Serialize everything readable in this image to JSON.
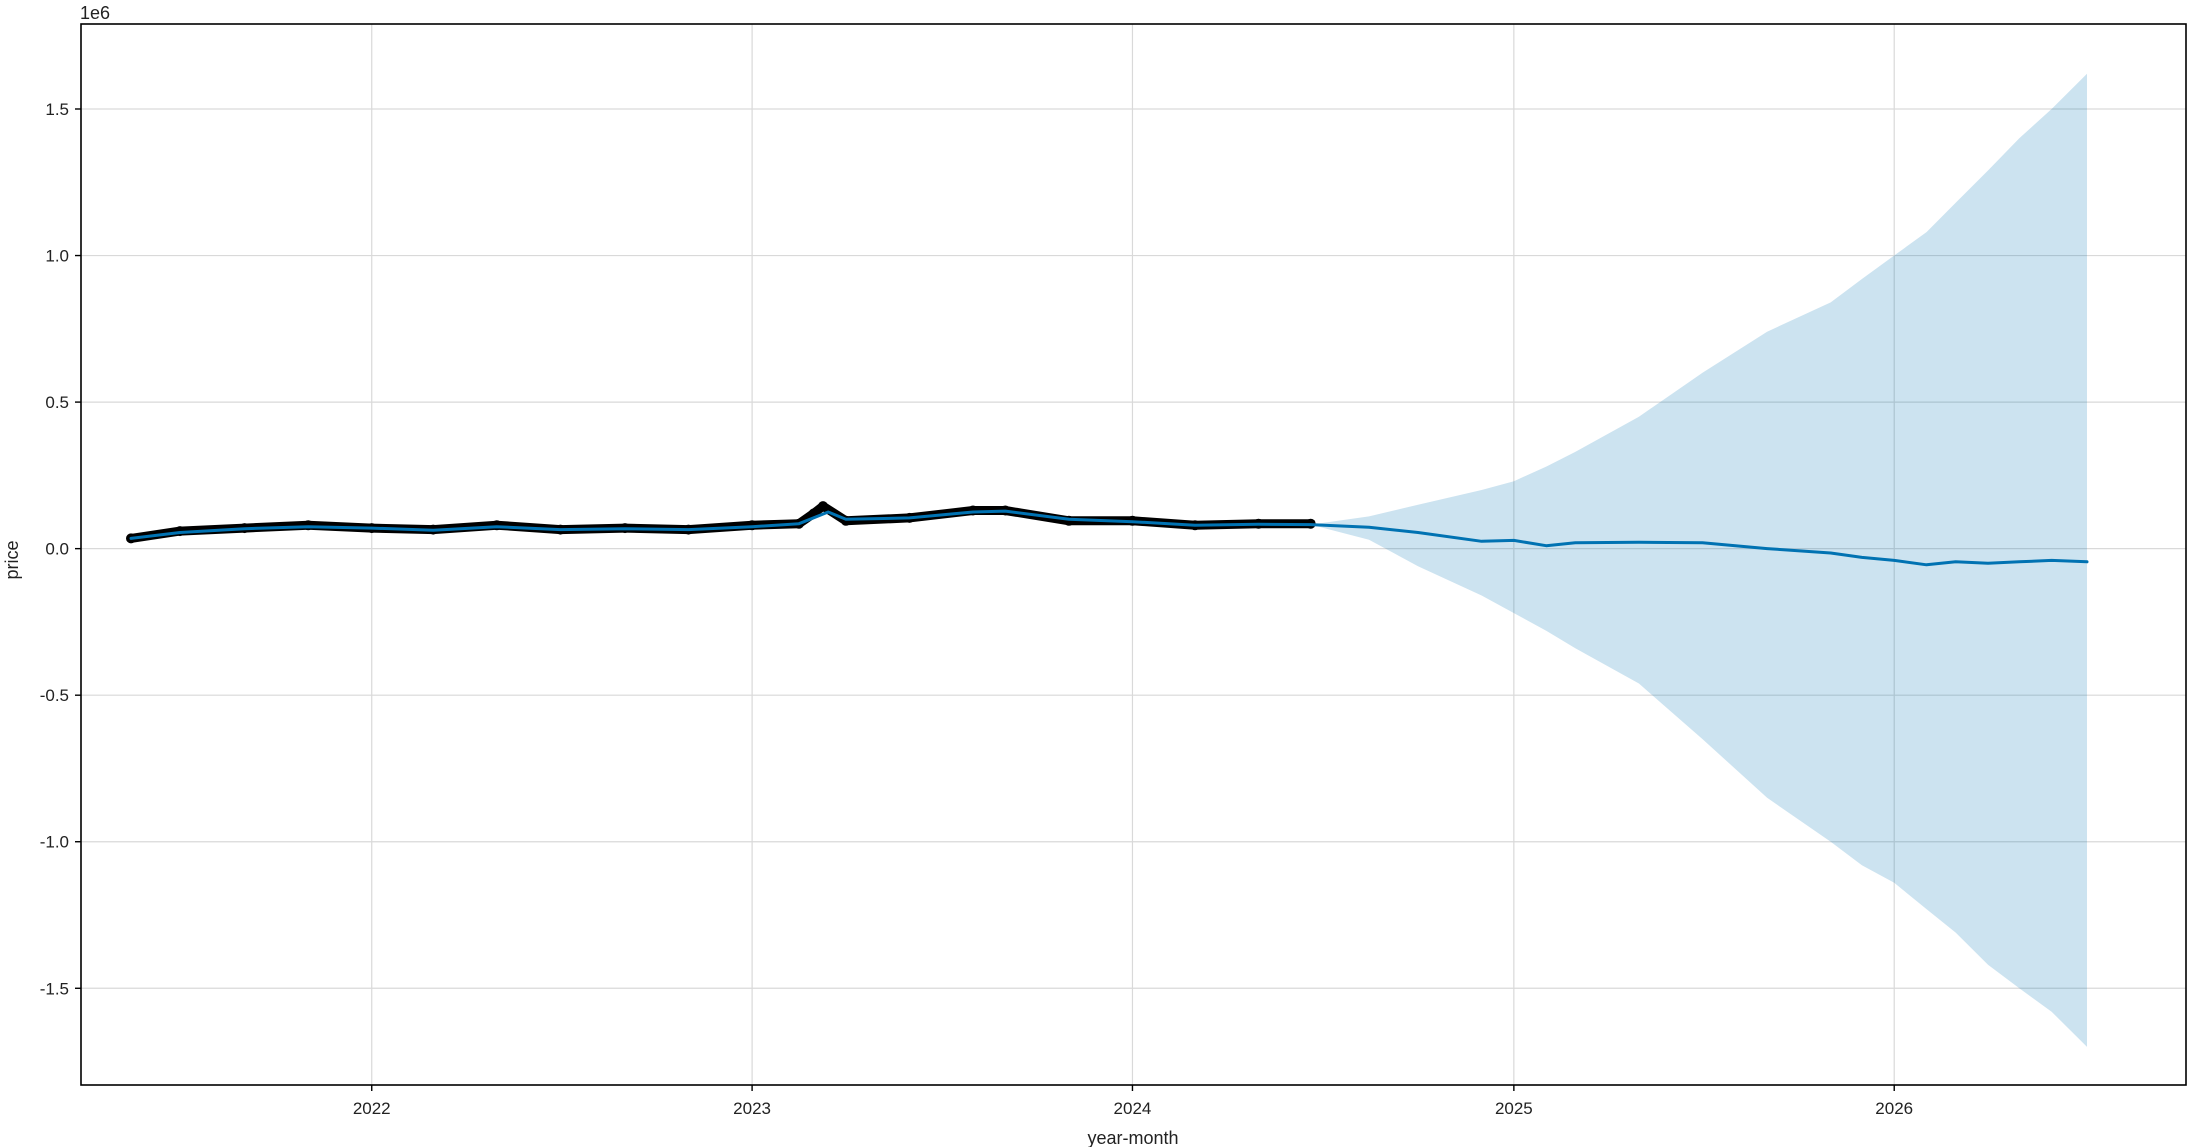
{
  "chart_data": {
    "type": "line",
    "title": "",
    "xlabel": "year-month",
    "ylabel": "price",
    "y_offset_label": "1e6",
    "grid": true,
    "x_ticks": [
      "2022",
      "2023",
      "2024",
      "2025",
      "2026"
    ],
    "y_ticks": [
      "1.5",
      "1.0",
      "0.5",
      "0.0",
      "-0.5",
      "-1.0",
      "-1.5"
    ],
    "xlim": [
      "2021-03-28",
      "2026-10-08"
    ],
    "ylim": [
      -1830000,
      1790000
    ],
    "colors": {
      "forecast_line": "#0072B2",
      "uncertainty_band": "#0072B2",
      "observed_points": "#000000",
      "grid": "#d9d9d9"
    },
    "observed": {
      "x": [
        "2021-05-15",
        "2021-07-01",
        "2021-09-01",
        "2021-11-01",
        "2022-01-01",
        "2022-03-01",
        "2022-05-01",
        "2022-07-01",
        "2022-09-01",
        "2022-11-01",
        "2023-01-01",
        "2023-02-15",
        "2023-03-01",
        "2023-03-10",
        "2023-04-01",
        "2023-06-01",
        "2023-08-01",
        "2023-09-01",
        "2023-11-01",
        "2024-01-01",
        "2024-03-01",
        "2024-05-01",
        "2024-06-20"
      ],
      "y": [
        35000,
        60000,
        70000,
        80000,
        70000,
        65000,
        80000,
        65000,
        70000,
        65000,
        80000,
        85000,
        120000,
        145000,
        95000,
        105000,
        130000,
        130000,
        95000,
        95000,
        80000,
        85000,
        85000
      ]
    },
    "series": [
      {
        "name": "",
        "x": [
          "2021-05-15",
          "2021-07-01",
          "2021-09-01",
          "2021-11-01",
          "2022-01-01",
          "2022-03-01",
          "2022-05-01",
          "2022-07-01",
          "2022-09-01",
          "2022-11-01",
          "2023-01-01",
          "2023-02-15",
          "2023-03-15",
          "2023-04-01",
          "2023-06-01",
          "2023-08-01",
          "2023-09-01",
          "2023-11-01",
          "2024-01-01",
          "2024-03-01",
          "2024-05-01",
          "2024-06-20",
          "2024-08-15",
          "2024-10-01",
          "2024-12-01",
          "2025-01-01",
          "2025-02-01",
          "2025-03-01",
          "2025-05-01",
          "2025-07-01",
          "2025-09-01",
          "2025-11-01",
          "2025-12-01",
          "2026-01-01",
          "2026-02-01",
          "2026-03-01",
          "2026-04-01",
          "2026-05-01",
          "2026-06-01",
          "2026-07-05"
        ],
        "y": [
          35000,
          55000,
          68000,
          75000,
          70000,
          63000,
          75000,
          65000,
          68000,
          65000,
          75000,
          85000,
          125000,
          100000,
          105000,
          125000,
          128000,
          100000,
          92000,
          80000,
          83000,
          82000,
          73000,
          55000,
          25000,
          28000,
          10000,
          20000,
          22000,
          20000,
          0,
          -15000,
          -30000,
          -40000,
          -55000,
          -45000,
          -50000,
          -45000,
          -40000,
          -45000
        ],
        "yhat_lower": [
          35000,
          55000,
          68000,
          75000,
          70000,
          63000,
          75000,
          65000,
          68000,
          65000,
          75000,
          85000,
          125000,
          100000,
          105000,
          125000,
          128000,
          100000,
          92000,
          80000,
          83000,
          82000,
          30000,
          -60000,
          -160000,
          -220000,
          -280000,
          -340000,
          -460000,
          -650000,
          -850000,
          -1000000,
          -1080000,
          -1140000,
          -1230000,
          -1310000,
          -1420000,
          -1500000,
          -1580000,
          -1700000
        ],
        "yhat_upper": [
          35000,
          55000,
          68000,
          75000,
          70000,
          63000,
          75000,
          65000,
          68000,
          65000,
          75000,
          85000,
          125000,
          100000,
          105000,
          125000,
          128000,
          100000,
          92000,
          80000,
          83000,
          82000,
          110000,
          150000,
          200000,
          230000,
          280000,
          330000,
          450000,
          600000,
          740000,
          840000,
          920000,
          1000000,
          1080000,
          1180000,
          1290000,
          1400000,
          1500000,
          1620000
        ]
      }
    ]
  }
}
